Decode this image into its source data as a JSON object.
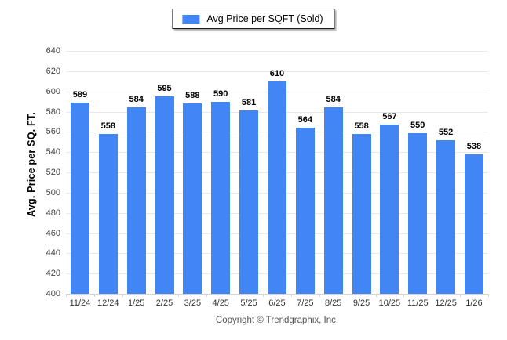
{
  "legend": {
    "label": "Avg Price per SQFT (Sold)",
    "swatch_icon": "blue-square-icon"
  },
  "footer": {
    "copyright": "Copyright © Trendgraphix, Inc."
  },
  "colors": {
    "bar_blue": "#4285f4",
    "gridline": "#e9e9e9",
    "axis_text": "#444444",
    "value_label": "#000000",
    "footer_text": "#555555"
  },
  "chart_data": {
    "type": "bar",
    "title": "",
    "xlabel": "",
    "ylabel": "Avg. Price per SQ. FT.",
    "ylim": [
      400,
      640
    ],
    "ytick_step": 20,
    "grid": true,
    "legend_position": "top-center",
    "bar_color": "#4285f4",
    "categories": [
      "11/24",
      "12/24",
      "1/25",
      "2/25",
      "3/25",
      "4/25",
      "5/25",
      "6/25",
      "7/25",
      "8/25",
      "9/25",
      "10/25",
      "11/25",
      "12/25",
      "1/26"
    ],
    "series": [
      {
        "name": "Avg Price per SQFT (Sold)",
        "values": [
          589,
          558,
          584,
          595,
          588,
          590,
          581,
          610,
          564,
          584,
          558,
          567,
          559,
          552,
          538
        ]
      }
    ]
  }
}
